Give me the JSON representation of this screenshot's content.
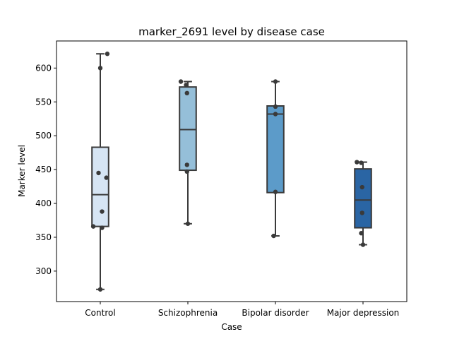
{
  "chart_data": {
    "type": "box",
    "title": "marker_2691 level by disease case",
    "xlabel": "Case",
    "ylabel": "Marker level",
    "ylim": [
      255,
      640
    ],
    "yticks": [
      300,
      350,
      400,
      450,
      500,
      550,
      600
    ],
    "grid": false,
    "categories": [
      "Control",
      "Schizophrenia",
      "Bipolar disorder",
      "Major depression"
    ],
    "colors": [
      "#d6e5f4",
      "#95bfd9",
      "#5c9bc9",
      "#2a65a4"
    ],
    "boxes": [
      {
        "whisker_low": 273,
        "q1": 366,
        "median": 413,
        "q3": 483,
        "whisker_high": 621
      },
      {
        "whisker_low": 370,
        "q1": 449,
        "median": 509,
        "q3": 572,
        "whisker_high": 580
      },
      {
        "whisker_low": 352,
        "q1": 416,
        "median": 532,
        "q3": 544,
        "whisker_high": 580
      },
      {
        "whisker_low": 339,
        "q1": 364,
        "median": 405,
        "q3": 451,
        "whisker_high": 461
      }
    ],
    "points": [
      [
        {
          "x": 0.08,
          "y": 621
        },
        {
          "x": 0.0,
          "y": 600
        },
        {
          "x": -0.02,
          "y": 445
        },
        {
          "x": -0.08,
          "y": 366
        },
        {
          "x": 0.07,
          "y": 438
        },
        {
          "x": 0.02,
          "y": 388
        },
        {
          "x": 0.02,
          "y": 364
        },
        {
          "x": 0.0,
          "y": 273
        }
      ],
      [
        {
          "x": -0.08,
          "y": 580
        },
        {
          "x": -0.02,
          "y": 575
        },
        {
          "x": -0.01,
          "y": 563
        },
        {
          "x": -0.01,
          "y": 457
        },
        {
          "x": -0.01,
          "y": 447
        },
        {
          "x": 0.0,
          "y": 370
        }
      ],
      [
        {
          "x": 0.0,
          "y": 580
        },
        {
          "x": 0.0,
          "y": 543
        },
        {
          "x": 0.0,
          "y": 532
        },
        {
          "x": 0.0,
          "y": 417
        },
        {
          "x": -0.02,
          "y": 352
        }
      ],
      [
        {
          "x": -0.07,
          "y": 461
        },
        {
          "x": -0.02,
          "y": 460
        },
        {
          "x": -0.01,
          "y": 424
        },
        {
          "x": -0.01,
          "y": 386
        },
        {
          "x": -0.02,
          "y": 356
        },
        {
          "x": 0.0,
          "y": 339
        }
      ]
    ]
  }
}
